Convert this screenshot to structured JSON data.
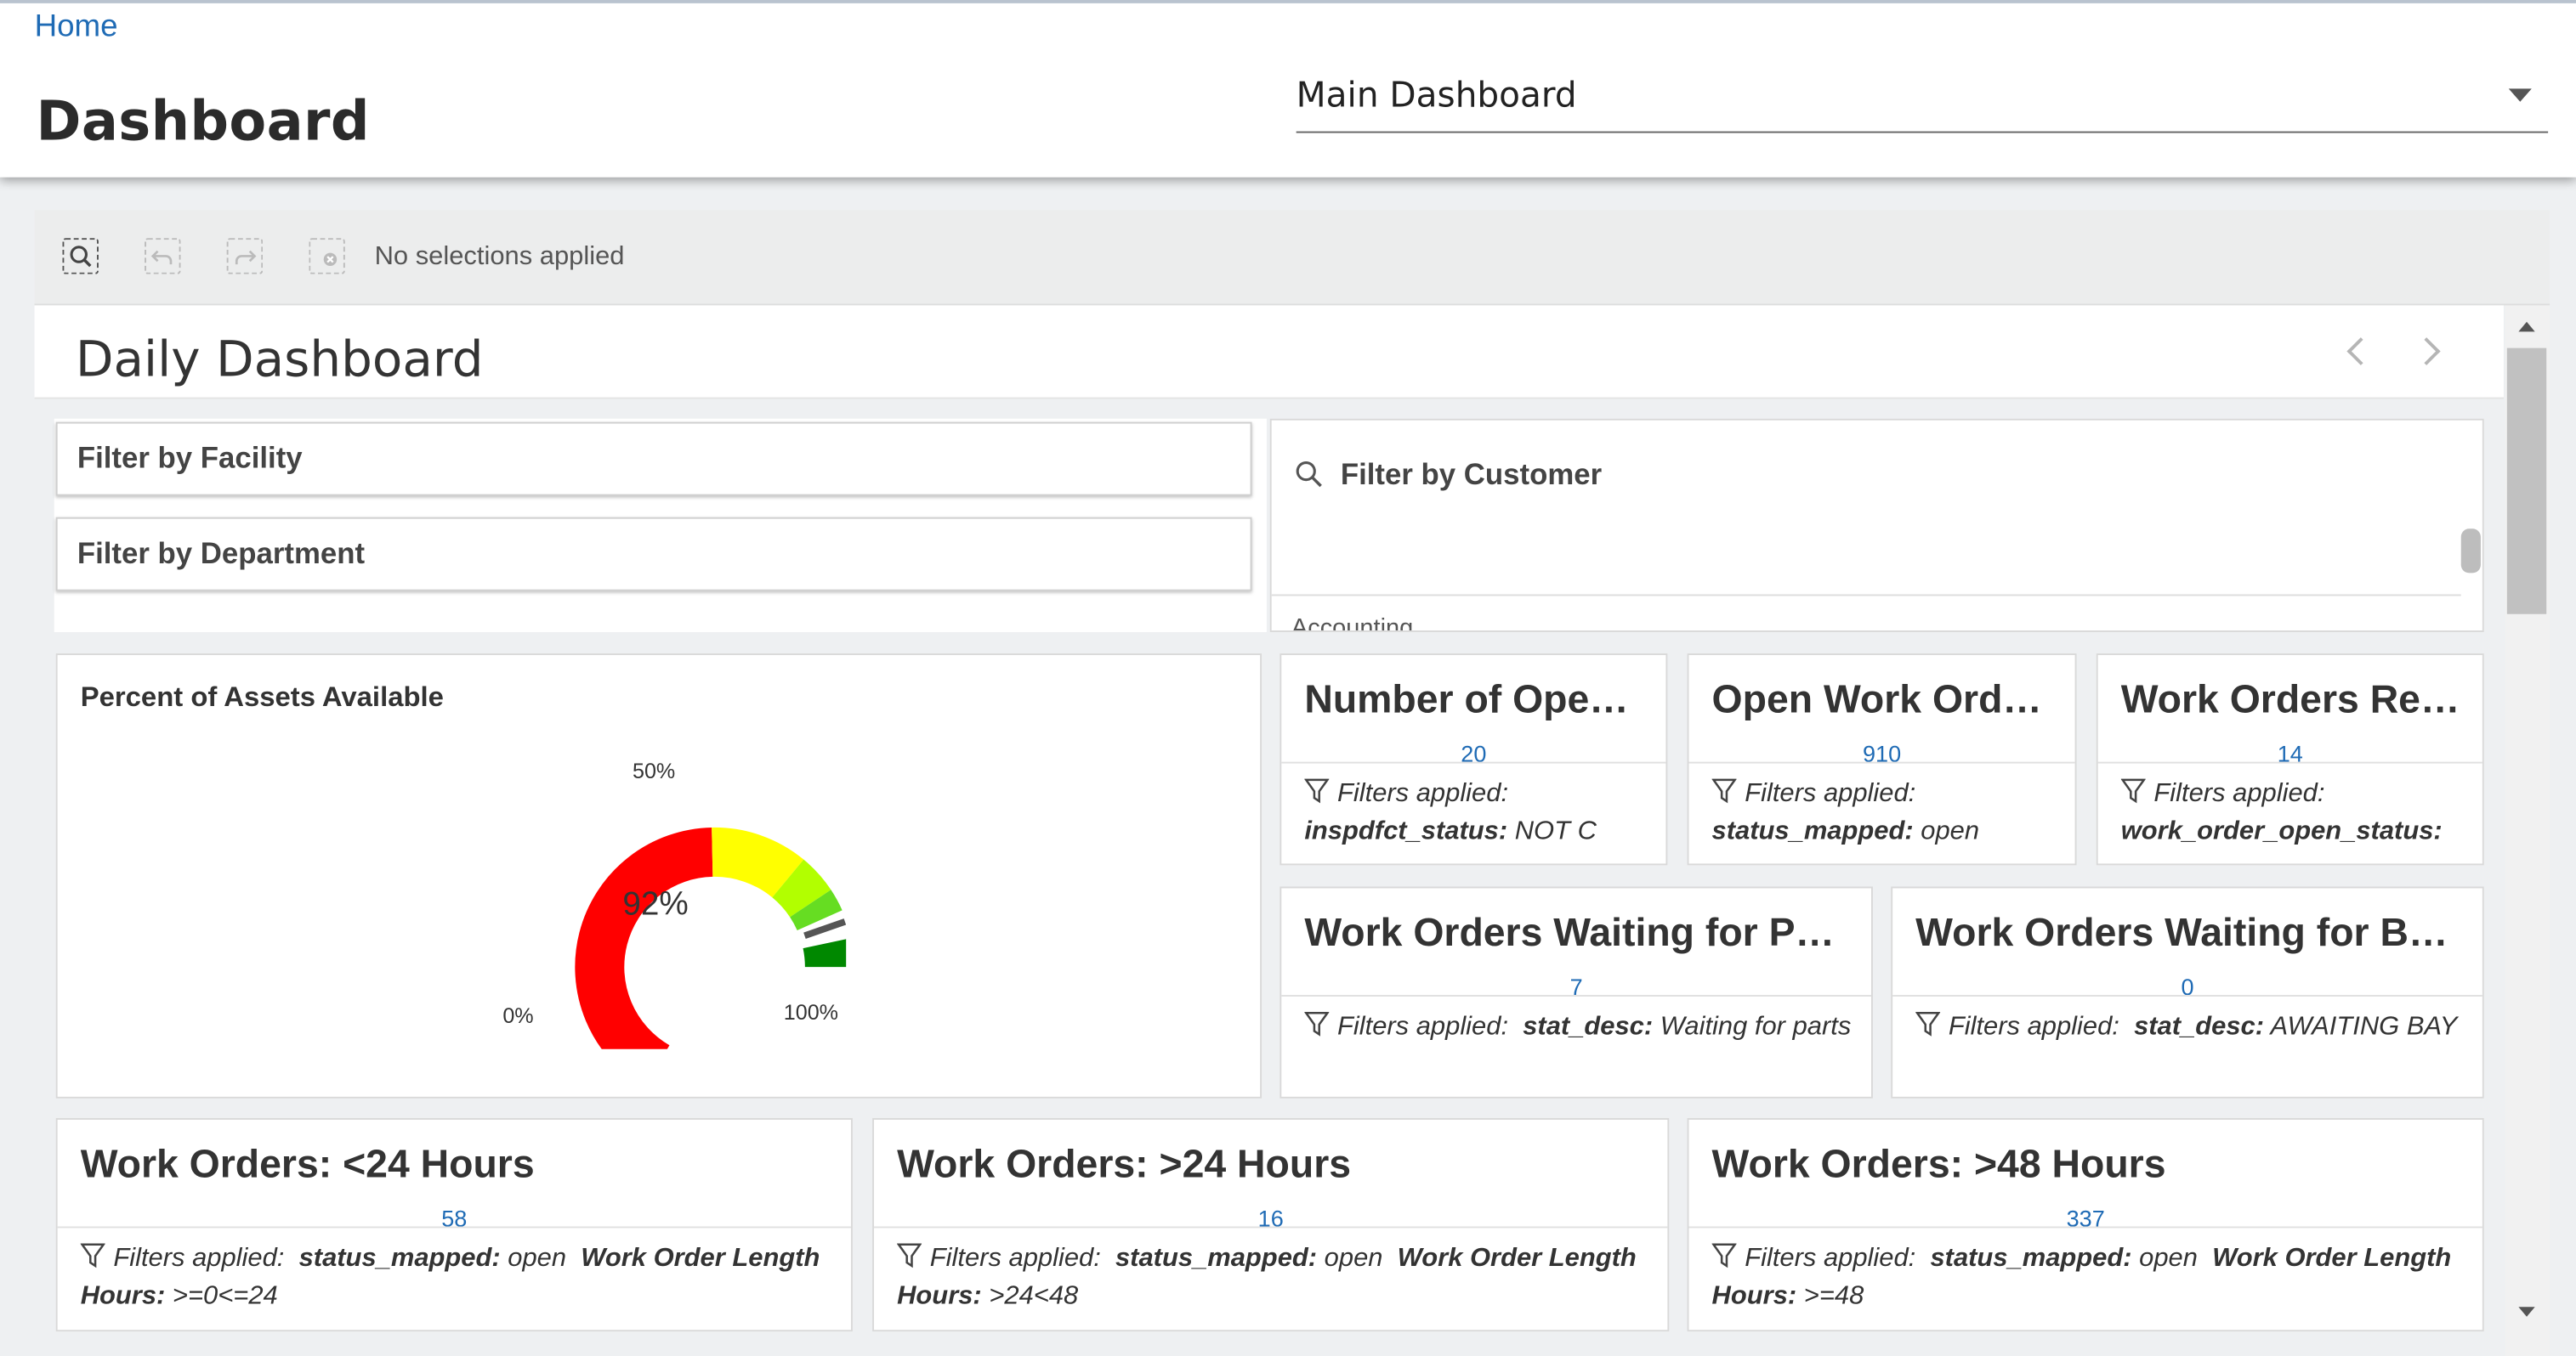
{
  "header": {
    "home_link": "Home",
    "title": "Dashboard",
    "dashboard_select_value": "Main Dashboard"
  },
  "toolbar": {
    "selection_status": "No selections applied"
  },
  "sheet": {
    "title": "Daily Dashboard",
    "filters": {
      "facility": "Filter by Facility",
      "department": "Filter by Department",
      "customer": "Filter by Customer",
      "customer_first_item": "Accounting"
    },
    "gauge": {
      "title": "Percent of Assets Available",
      "value_label": "92%",
      "value": 0.92,
      "label_0": "0%",
      "label_50": "50%",
      "label_100": "100%",
      "colors": {
        "low": "#ff0000",
        "mid": "#ffff00",
        "mid_high": "#b2ff00",
        "high": "#66dd22",
        "top": "#008800"
      }
    },
    "kpis_top": [
      {
        "title": "Number of Ope…",
        "value": "20",
        "filter_prefix": "Filters applied:",
        "field": "inspdfct_status:",
        "field_value": " NOT C"
      },
      {
        "title": "Open Work Ord…",
        "value": "910",
        "filter_prefix": "Filters applied:",
        "field": "status_mapped:",
        "field_value": " open"
      },
      {
        "title": "Work Orders Re…",
        "value": "14",
        "filter_prefix": "Filters applied:",
        "field": "work_order_open_status:",
        "field_value": ""
      }
    ],
    "kpis_mid": [
      {
        "title": "Work Orders Waiting for P…",
        "value": "7",
        "filter_prefix": "Filters applied:",
        "field": "stat_desc:",
        "field_value": " Waiting for parts"
      },
      {
        "title": "Work Orders Waiting for B…",
        "value": "0",
        "filter_prefix": "Filters applied:",
        "field": "stat_desc:",
        "field_value": " AWAITING BAY"
      }
    ],
    "kpis_bottom": [
      {
        "title": "Work Orders: <24 Hours",
        "value": "58",
        "filter_prefix": "Filters applied:",
        "field": "status_mapped:",
        "field_value": " open",
        "field2": "Work Order Length Hours:",
        "field2_value": " >=0<=24"
      },
      {
        "title": "Work Orders: >24 Hours",
        "value": "16",
        "filter_prefix": "Filters applied:",
        "field": "status_mapped:",
        "field_value": " open",
        "field2": "Work Order Length Hours:",
        "field2_value": " >24<48"
      },
      {
        "title": "Work Orders: >48 Hours",
        "value": "337",
        "filter_prefix": "Filters applied:",
        "field": "status_mapped:",
        "field_value": " open",
        "field2": "Work Order Length Hours:",
        "field2_value": " >=48"
      }
    ]
  }
}
